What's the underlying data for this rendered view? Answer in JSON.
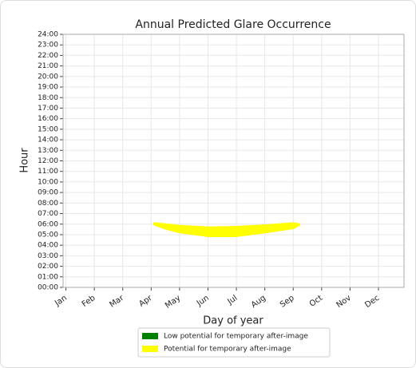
{
  "chart_data": {
    "type": "area",
    "title": "Annual Predicted Glare Occurrence",
    "xlabel": "Day of year",
    "ylabel": "Hour",
    "xlim": [
      -0.1,
      11.9
    ],
    "xticks": [
      {
        "value": 0,
        "label": "Jan"
      },
      {
        "value": 1,
        "label": "Feb"
      },
      {
        "value": 2,
        "label": "Mar"
      },
      {
        "value": 3,
        "label": "Apr"
      },
      {
        "value": 4,
        "label": "May"
      },
      {
        "value": 5,
        "label": "Jun"
      },
      {
        "value": 6,
        "label": "Jul"
      },
      {
        "value": 7,
        "label": "Aug"
      },
      {
        "value": 8,
        "label": "Sep"
      },
      {
        "value": 9,
        "label": "Oct"
      },
      {
        "value": 10,
        "label": "Nov"
      },
      {
        "value": 11,
        "label": "Dec"
      }
    ],
    "ylim": [
      0,
      24
    ],
    "yticks": [
      {
        "value": 0,
        "label": "00:00"
      },
      {
        "value": 1,
        "label": "01:00"
      },
      {
        "value": 2,
        "label": "02:00"
      },
      {
        "value": 3,
        "label": "03:00"
      },
      {
        "value": 4,
        "label": "04:00"
      },
      {
        "value": 5,
        "label": "05:00"
      },
      {
        "value": 6,
        "label": "06:00"
      },
      {
        "value": 7,
        "label": "07:00"
      },
      {
        "value": 8,
        "label": "08:00"
      },
      {
        "value": 9,
        "label": "09:00"
      },
      {
        "value": 10,
        "label": "10:00"
      },
      {
        "value": 11,
        "label": "11:00"
      },
      {
        "value": 12,
        "label": "12:00"
      },
      {
        "value": 13,
        "label": "13:00"
      },
      {
        "value": 14,
        "label": "14:00"
      },
      {
        "value": 15,
        "label": "15:00"
      },
      {
        "value": 16,
        "label": "16:00"
      },
      {
        "value": 17,
        "label": "17:00"
      },
      {
        "value": 18,
        "label": "18:00"
      },
      {
        "value": 19,
        "label": "19:00"
      },
      {
        "value": 20,
        "label": "20:00"
      },
      {
        "value": 21,
        "label": "21:00"
      },
      {
        "value": 22,
        "label": "22:00"
      },
      {
        "value": 23,
        "label": "23:00"
      },
      {
        "value": 24,
        "label": "24:00"
      }
    ],
    "grid": true,
    "legend": "bottom",
    "series": [
      {
        "name": "Low potential for temporary after-image",
        "color": "#008000",
        "x": [],
        "low": [],
        "high": []
      },
      {
        "name": "Potential for temporary after-image",
        "color": "#ffff00",
        "x": [
          3.1,
          3.5,
          4,
          5,
          6,
          7,
          8,
          8.2
        ],
        "low": [
          5.95,
          5.55,
          5.2,
          4.85,
          4.85,
          5.2,
          5.6,
          5.9
        ],
        "high": [
          6.1,
          6.0,
          5.85,
          5.7,
          5.75,
          5.9,
          6.1,
          6.0
        ]
      }
    ]
  }
}
